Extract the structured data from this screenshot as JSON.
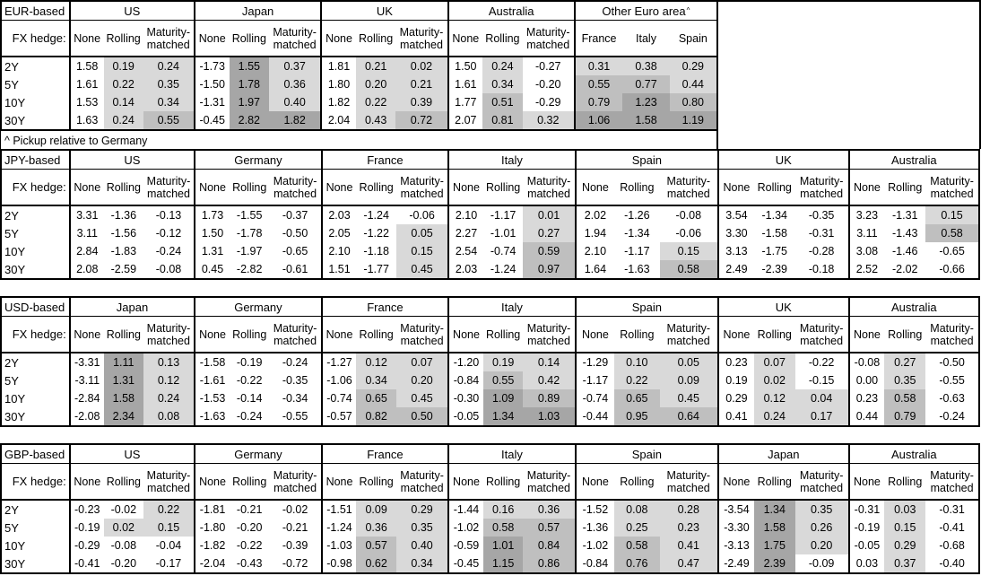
{
  "footnote": "^ Pickup relative to Germany",
  "fx_hedge_label": "FX hedge:",
  "hedge_columns": [
    "None",
    "Rolling",
    "Maturity-matched"
  ],
  "row_labels": [
    "2Y",
    "5Y",
    "10Y",
    "30Y"
  ],
  "shading": {
    "none": "#ffffff",
    "light": "#d9d9d9",
    "medium": "#bfbfbf",
    "dark": "#a6a6a6",
    "light_min": 0,
    "medium_min": 0.5,
    "dark_min": 1.0
  },
  "tables": [
    {
      "id": "eur",
      "label": "EUR-based",
      "groups": [
        {
          "name": "US",
          "cols": [
            "None",
            "Rolling",
            "Maturity-matched"
          ],
          "shaded": [
            false,
            true,
            true
          ],
          "rows": [
            [
              "1.58",
              "0.19",
              "0.24"
            ],
            [
              "1.61",
              "0.22",
              "0.35"
            ],
            [
              "1.53",
              "0.14",
              "0.34"
            ],
            [
              "1.63",
              "0.24",
              "0.55"
            ]
          ]
        },
        {
          "name": "Japan",
          "cols": [
            "None",
            "Rolling",
            "Maturity-matched"
          ],
          "shaded": [
            false,
            true,
            true
          ],
          "rows": [
            [
              "-1.73",
              "1.55",
              "0.37"
            ],
            [
              "-1.50",
              "1.78",
              "0.36"
            ],
            [
              "-1.31",
              "1.97",
              "0.40"
            ],
            [
              "-0.45",
              "2.82",
              "1.82"
            ]
          ]
        },
        {
          "name": "UK",
          "cols": [
            "None",
            "Rolling",
            "Maturity-matched"
          ],
          "shaded": [
            false,
            true,
            true
          ],
          "rows": [
            [
              "1.81",
              "0.21",
              "0.02"
            ],
            [
              "1.80",
              "0.20",
              "0.21"
            ],
            [
              "1.82",
              "0.22",
              "0.39"
            ],
            [
              "2.04",
              "0.43",
              "0.72"
            ]
          ]
        },
        {
          "name": "Australia",
          "cols": [
            "None",
            "Rolling",
            "Maturity-matched"
          ],
          "shaded": [
            false,
            true,
            true
          ],
          "rows": [
            [
              "1.50",
              "0.24",
              "-0.27"
            ],
            [
              "1.61",
              "0.34",
              "-0.20"
            ],
            [
              "1.77",
              "0.51",
              "-0.29"
            ],
            [
              "2.07",
              "0.81",
              "0.32"
            ]
          ]
        },
        {
          "name": "Other Euro area",
          "sup": "^",
          "cols": [
            "France",
            "Italy",
            "Spain"
          ],
          "shaded": [
            true,
            true,
            true
          ],
          "rows": [
            [
              "0.31",
              "0.38",
              "0.29"
            ],
            [
              "0.55",
              "0.77",
              "0.44"
            ],
            [
              "0.79",
              "1.23",
              "0.80"
            ],
            [
              "1.06",
              "1.58",
              "1.19"
            ]
          ]
        }
      ]
    },
    {
      "id": "jpy",
      "label": "JPY-based",
      "groups": [
        {
          "name": "US",
          "cols": [
            "None",
            "Rolling",
            "Maturity-matched"
          ],
          "shaded": [
            false,
            true,
            true
          ],
          "rows": [
            [
              "3.31",
              "-1.36",
              "-0.13"
            ],
            [
              "3.11",
              "-1.56",
              "-0.12"
            ],
            [
              "2.84",
              "-1.83",
              "-0.24"
            ],
            [
              "2.08",
              "-2.59",
              "-0.08"
            ]
          ]
        },
        {
          "name": "Germany",
          "cols": [
            "None",
            "Rolling",
            "Maturity-matched"
          ],
          "shaded": [
            false,
            true,
            true
          ],
          "rows": [
            [
              "1.73",
              "-1.55",
              "-0.37"
            ],
            [
              "1.50",
              "-1.78",
              "-0.50"
            ],
            [
              "1.31",
              "-1.97",
              "-0.65"
            ],
            [
              "0.45",
              "-2.82",
              "-0.61"
            ]
          ]
        },
        {
          "name": "France",
          "cols": [
            "None",
            "Rolling",
            "Maturity-matched"
          ],
          "shaded": [
            false,
            true,
            true
          ],
          "rows": [
            [
              "2.03",
              "-1.24",
              "-0.06"
            ],
            [
              "2.05",
              "-1.22",
              "0.05"
            ],
            [
              "2.10",
              "-1.18",
              "0.15"
            ],
            [
              "1.51",
              "-1.77",
              "0.45"
            ]
          ]
        },
        {
          "name": "Italy",
          "cols": [
            "None",
            "Rolling",
            "Maturity-matched"
          ],
          "shaded": [
            false,
            true,
            true
          ],
          "rows": [
            [
              "2.10",
              "-1.17",
              "0.01"
            ],
            [
              "2.27",
              "-1.01",
              "0.27"
            ],
            [
              "2.54",
              "-0.74",
              "0.59"
            ],
            [
              "2.03",
              "-1.24",
              "0.97"
            ]
          ]
        },
        {
          "name": "Spain",
          "cols": [
            "None",
            "Rolling",
            "Maturity-matched"
          ],
          "shaded": [
            false,
            true,
            true
          ],
          "rows": [
            [
              "2.02",
              "-1.26",
              "-0.08"
            ],
            [
              "1.94",
              "-1.34",
              "-0.06"
            ],
            [
              "2.10",
              "-1.17",
              "0.15"
            ],
            [
              "1.64",
              "-1.63",
              "0.58"
            ]
          ]
        },
        {
          "name": "UK",
          "cols": [
            "None",
            "Rolling",
            "Maturity-matched"
          ],
          "shaded": [
            false,
            true,
            true
          ],
          "rows": [
            [
              "3.54",
              "-1.34",
              "-0.35"
            ],
            [
              "3.30",
              "-1.58",
              "-0.31"
            ],
            [
              "3.13",
              "-1.75",
              "-0.28"
            ],
            [
              "2.49",
              "-2.39",
              "-0.18"
            ]
          ]
        },
        {
          "name": "Australia",
          "cols": [
            "None",
            "Rolling",
            "Maturity-matched"
          ],
          "shaded": [
            false,
            true,
            true
          ],
          "rows": [
            [
              "3.23",
              "-1.31",
              "0.15"
            ],
            [
              "3.11",
              "-1.43",
              "0.58"
            ],
            [
              "3.08",
              "-1.46",
              "-0.65"
            ],
            [
              "2.52",
              "-2.02",
              "-0.66"
            ]
          ]
        }
      ]
    },
    {
      "id": "usd",
      "label": "USD-based",
      "groups": [
        {
          "name": "Japan",
          "cols": [
            "None",
            "Rolling",
            "Maturity-matched"
          ],
          "shaded": [
            false,
            true,
            true
          ],
          "rows": [
            [
              "-3.31",
              "1.11",
              "0.13"
            ],
            [
              "-3.11",
              "1.31",
              "0.12"
            ],
            [
              "-2.84",
              "1.58",
              "0.24"
            ],
            [
              "-2.08",
              "2.34",
              "0.08"
            ]
          ]
        },
        {
          "name": "Germany",
          "cols": [
            "None",
            "Rolling",
            "Maturity-matched"
          ],
          "shaded": [
            false,
            true,
            true
          ],
          "rows": [
            [
              "-1.58",
              "-0.19",
              "-0.24"
            ],
            [
              "-1.61",
              "-0.22",
              "-0.35"
            ],
            [
              "-1.53",
              "-0.14",
              "-0.34"
            ],
            [
              "-1.63",
              "-0.24",
              "-0.55"
            ]
          ]
        },
        {
          "name": "France",
          "cols": [
            "None",
            "Rolling",
            "Maturity-matched"
          ],
          "shaded": [
            false,
            true,
            true
          ],
          "rows": [
            [
              "-1.27",
              "0.12",
              "0.07"
            ],
            [
              "-1.06",
              "0.34",
              "0.20"
            ],
            [
              "-0.74",
              "0.65",
              "0.45"
            ],
            [
              "-0.57",
              "0.82",
              "0.50"
            ]
          ]
        },
        {
          "name": "Italy",
          "cols": [
            "None",
            "Rolling",
            "Maturity-matched"
          ],
          "shaded": [
            false,
            true,
            true
          ],
          "rows": [
            [
              "-1.20",
              "0.19",
              "0.14"
            ],
            [
              "-0.84",
              "0.55",
              "0.42"
            ],
            [
              "-0.30",
              "1.09",
              "0.89"
            ],
            [
              "-0.05",
              "1.34",
              "1.03"
            ]
          ]
        },
        {
          "name": "Spain",
          "cols": [
            "None",
            "Rolling",
            "Maturity-matched"
          ],
          "shaded": [
            false,
            true,
            true
          ],
          "rows": [
            [
              "-1.29",
              "0.10",
              "0.05"
            ],
            [
              "-1.17",
              "0.22",
              "0.09"
            ],
            [
              "-0.74",
              "0.65",
              "0.45"
            ],
            [
              "-0.44",
              "0.95",
              "0.64"
            ]
          ]
        },
        {
          "name": "UK",
          "cols": [
            "None",
            "Rolling",
            "Maturity-matched"
          ],
          "shaded": [
            false,
            true,
            true
          ],
          "rows": [
            [
              "0.23",
              "0.07",
              "-0.22"
            ],
            [
              "0.19",
              "0.02",
              "-0.15"
            ],
            [
              "0.29",
              "0.12",
              "0.04"
            ],
            [
              "0.41",
              "0.24",
              "0.17"
            ]
          ]
        },
        {
          "name": "Australia",
          "cols": [
            "None",
            "Rolling",
            "Maturity-matched"
          ],
          "shaded": [
            false,
            true,
            true
          ],
          "rows": [
            [
              "-0.08",
              "0.27",
              "-0.50"
            ],
            [
              "0.00",
              "0.35",
              "-0.55"
            ],
            [
              "0.23",
              "0.58",
              "-0.63"
            ],
            [
              "0.44",
              "0.79",
              "-0.24"
            ]
          ]
        }
      ]
    },
    {
      "id": "gbp",
      "label": "GBP-based",
      "groups": [
        {
          "name": "US",
          "cols": [
            "None",
            "Rolling",
            "Maturity-matched"
          ],
          "shaded": [
            false,
            true,
            true
          ],
          "rows": [
            [
              "-0.23",
              "-0.02",
              "0.22"
            ],
            [
              "-0.19",
              "0.02",
              "0.15"
            ],
            [
              "-0.29",
              "-0.08",
              "-0.04"
            ],
            [
              "-0.41",
              "-0.20",
              "-0.17"
            ]
          ]
        },
        {
          "name": "Germany",
          "cols": [
            "None",
            "Rolling",
            "Maturity-matched"
          ],
          "shaded": [
            false,
            true,
            true
          ],
          "rows": [
            [
              "-1.81",
              "-0.21",
              "-0.02"
            ],
            [
              "-1.80",
              "-0.20",
              "-0.21"
            ],
            [
              "-1.82",
              "-0.22",
              "-0.39"
            ],
            [
              "-2.04",
              "-0.43",
              "-0.72"
            ]
          ]
        },
        {
          "name": "France",
          "cols": [
            "None",
            "Rolling",
            "Maturity-matched"
          ],
          "shaded": [
            false,
            true,
            true
          ],
          "rows": [
            [
              "-1.51",
              "0.09",
              "0.29"
            ],
            [
              "-1.24",
              "0.36",
              "0.35"
            ],
            [
              "-1.03",
              "0.57",
              "0.40"
            ],
            [
              "-0.98",
              "0.62",
              "0.34"
            ]
          ]
        },
        {
          "name": "Italy",
          "cols": [
            "None",
            "Rolling",
            "Maturity-matched"
          ],
          "shaded": [
            false,
            true,
            true
          ],
          "rows": [
            [
              "-1.44",
              "0.16",
              "0.36"
            ],
            [
              "-1.02",
              "0.58",
              "0.57"
            ],
            [
              "-0.59",
              "1.01",
              "0.84"
            ],
            [
              "-0.45",
              "1.15",
              "0.86"
            ]
          ]
        },
        {
          "name": "Spain",
          "cols": [
            "None",
            "Rolling",
            "Maturity-matched"
          ],
          "shaded": [
            false,
            true,
            true
          ],
          "rows": [
            [
              "-1.52",
              "0.08",
              "0.28"
            ],
            [
              "-1.36",
              "0.25",
              "0.23"
            ],
            [
              "-1.02",
              "0.58",
              "0.41"
            ],
            [
              "-0.84",
              "0.76",
              "0.47"
            ]
          ]
        },
        {
          "name": "Japan",
          "cols": [
            "None",
            "Rolling",
            "Maturity-matched"
          ],
          "shaded": [
            false,
            true,
            true
          ],
          "rows": [
            [
              "-3.54",
              "1.34",
              "0.35"
            ],
            [
              "-3.30",
              "1.58",
              "0.26"
            ],
            [
              "-3.13",
              "1.75",
              "0.20"
            ],
            [
              "-2.49",
              "2.39",
              "-0.09"
            ]
          ]
        },
        {
          "name": "Australia",
          "cols": [
            "None",
            "Rolling",
            "Maturity-matched"
          ],
          "shaded": [
            false,
            true,
            true
          ],
          "rows": [
            [
              "-0.31",
              "0.03",
              "-0.31"
            ],
            [
              "-0.19",
              "0.15",
              "-0.41"
            ],
            [
              "-0.05",
              "0.29",
              "-0.68"
            ],
            [
              "0.03",
              "0.37",
              "-0.40"
            ]
          ]
        }
      ]
    }
  ]
}
